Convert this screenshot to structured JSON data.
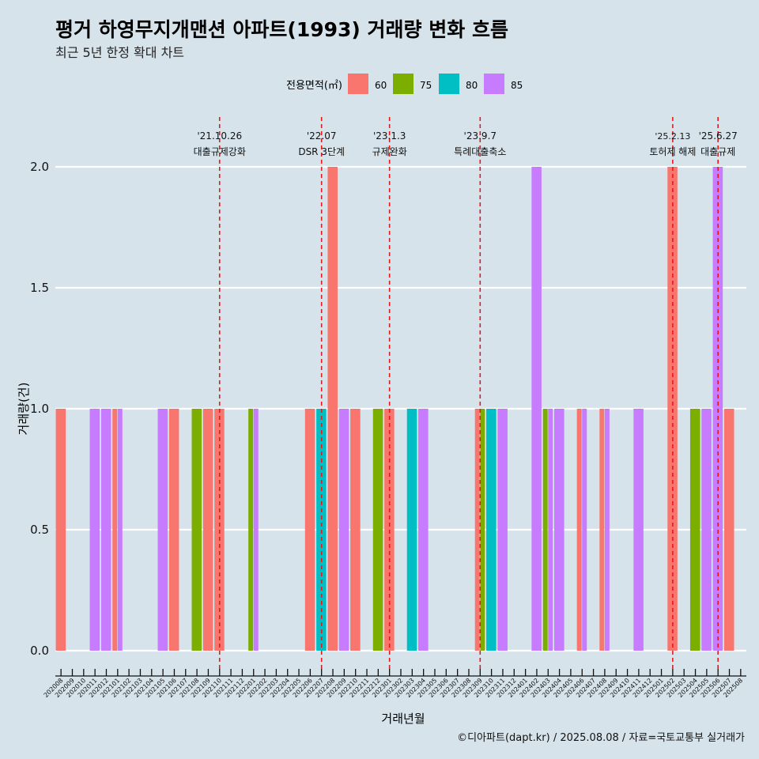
{
  "title": "평거 하영무지개맨션 아파트(1993) 거래량 변화 흐름",
  "subtitle": "최근 5년 한정 확대 차트",
  "caption": "©디아파트(dapt.kr) / 2025.08.08 / 자료=국토교통부 실거래가",
  "chart_data": {
    "type": "bar",
    "xlabel": "거래년월",
    "ylabel": "거래량(건)",
    "ylim": [
      0,
      2
    ],
    "yticks": [
      "0.0",
      "0.5",
      "1.0",
      "1.5",
      "2.0"
    ],
    "legend": {
      "title": "전용면적(㎡)",
      "position": "top",
      "items": [
        {
          "name": "60",
          "color": "#f8766d"
        },
        {
          "name": "75",
          "color": "#7cae00"
        },
        {
          "name": "80",
          "color": "#00bfc4"
        },
        {
          "name": "85",
          "color": "#c77cff"
        }
      ]
    },
    "categories": [
      "202008",
      "202009",
      "202010",
      "202011",
      "202012",
      "202101",
      "202102",
      "202103",
      "202104",
      "202105",
      "202106",
      "202107",
      "202108",
      "202109",
      "202110",
      "202111",
      "202112",
      "202201",
      "202202",
      "202203",
      "202204",
      "202205",
      "202206",
      "202207",
      "202208",
      "202209",
      "202210",
      "202211",
      "202212",
      "202301",
      "202302",
      "202303",
      "202304",
      "202305",
      "202306",
      "202307",
      "202308",
      "202309",
      "202310",
      "202311",
      "202312",
      "202401",
      "202402",
      "202403",
      "202404",
      "202405",
      "202406",
      "202407",
      "202408",
      "202409",
      "202410",
      "202411",
      "202412",
      "202501",
      "202502",
      "202503",
      "202504",
      "202505",
      "202506",
      "202507",
      "202508"
    ],
    "bars": [
      {
        "month": "202008",
        "groups": [
          {
            "area": "60",
            "count": 1
          }
        ]
      },
      {
        "month": "202011",
        "groups": [
          {
            "area": "85",
            "count": 1
          }
        ]
      },
      {
        "month": "202012",
        "groups": [
          {
            "area": "85",
            "count": 1
          }
        ]
      },
      {
        "month": "202101",
        "groups": [
          {
            "area": "60",
            "count": 1
          },
          {
            "area": "85",
            "count": 1
          }
        ]
      },
      {
        "month": "202105",
        "groups": [
          {
            "area": "85",
            "count": 1
          }
        ]
      },
      {
        "month": "202106",
        "groups": [
          {
            "area": "60",
            "count": 1
          }
        ]
      },
      {
        "month": "202108",
        "groups": [
          {
            "area": "75",
            "count": 1
          }
        ]
      },
      {
        "month": "202109",
        "groups": [
          {
            "area": "60",
            "count": 1
          }
        ]
      },
      {
        "month": "202110",
        "groups": [
          {
            "area": "60",
            "count": 1
          }
        ]
      },
      {
        "month": "202201",
        "groups": [
          {
            "area": "75",
            "count": 1
          },
          {
            "area": "85",
            "count": 1
          }
        ]
      },
      {
        "month": "202206",
        "groups": [
          {
            "area": "60",
            "count": 1
          }
        ]
      },
      {
        "month": "202207",
        "groups": [
          {
            "area": "80",
            "count": 1
          }
        ]
      },
      {
        "month": "202208",
        "groups": [
          {
            "area": "60",
            "count": 2
          }
        ]
      },
      {
        "month": "202209",
        "groups": [
          {
            "area": "85",
            "count": 1
          }
        ]
      },
      {
        "month": "202210",
        "groups": [
          {
            "area": "60",
            "count": 1
          }
        ]
      },
      {
        "month": "202212",
        "groups": [
          {
            "area": "75",
            "count": 1
          }
        ]
      },
      {
        "month": "202301",
        "groups": [
          {
            "area": "60",
            "count": 1
          }
        ]
      },
      {
        "month": "202303",
        "groups": [
          {
            "area": "80",
            "count": 1
          }
        ]
      },
      {
        "month": "202304",
        "groups": [
          {
            "area": "85",
            "count": 1
          }
        ]
      },
      {
        "month": "202309",
        "groups": [
          {
            "area": "60",
            "count": 1
          },
          {
            "area": "75",
            "count": 1
          }
        ]
      },
      {
        "month": "202310",
        "groups": [
          {
            "area": "80",
            "count": 1
          }
        ]
      },
      {
        "month": "202311",
        "groups": [
          {
            "area": "85",
            "count": 1
          }
        ]
      },
      {
        "month": "202402",
        "groups": [
          {
            "area": "85",
            "count": 2
          }
        ]
      },
      {
        "month": "202403",
        "groups": [
          {
            "area": "75",
            "count": 1
          },
          {
            "area": "85",
            "count": 1
          }
        ]
      },
      {
        "month": "202404",
        "groups": [
          {
            "area": "85",
            "count": 1
          }
        ]
      },
      {
        "month": "202406",
        "groups": [
          {
            "area": "60",
            "count": 1
          },
          {
            "area": "85",
            "count": 1
          }
        ]
      },
      {
        "month": "202408",
        "groups": [
          {
            "area": "60",
            "count": 1
          },
          {
            "area": "85",
            "count": 1
          }
        ]
      },
      {
        "month": "202411",
        "groups": [
          {
            "area": "85",
            "count": 1
          }
        ]
      },
      {
        "month": "202502",
        "groups": [
          {
            "area": "60",
            "count": 2
          }
        ]
      },
      {
        "month": "202504",
        "groups": [
          {
            "area": "75",
            "count": 1
          }
        ]
      },
      {
        "month": "202505",
        "groups": [
          {
            "area": "85",
            "count": 1
          }
        ]
      },
      {
        "month": "202506",
        "groups": [
          {
            "area": "85",
            "count": 2
          }
        ]
      },
      {
        "month": "202507",
        "groups": [
          {
            "area": "60",
            "count": 1
          }
        ]
      }
    ],
    "annotations": [
      {
        "month": "202110",
        "date": "'21.10.26",
        "label": "대출규제강화"
      },
      {
        "month": "202207",
        "date": "'22.07",
        "label": "DSR 3단계"
      },
      {
        "month": "202301",
        "date": "'23.1.3",
        "label": "규제완화"
      },
      {
        "month": "202309",
        "date": "'23.9.7",
        "label": "특례대출축소"
      },
      {
        "month": "202502",
        "date": "'25.2.13",
        "label": "토허제 해제"
      },
      {
        "month": "202506",
        "date": "'25.6.27",
        "label": "대출규제"
      }
    ],
    "annotation_line_color": "#e31a1c",
    "grid": true
  }
}
